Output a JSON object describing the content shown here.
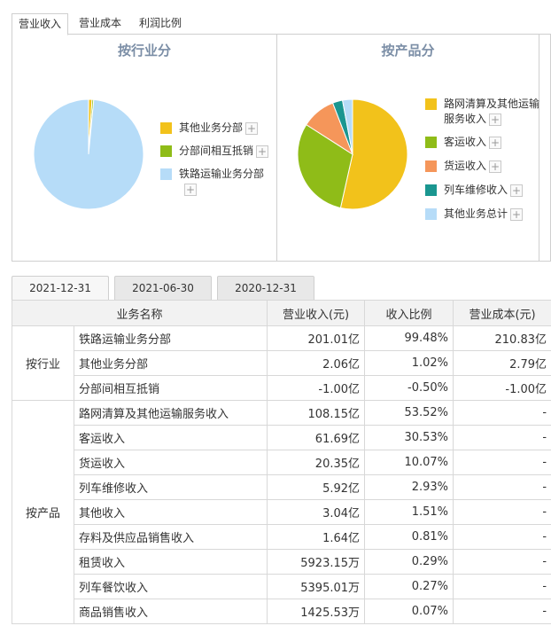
{
  "tabs": [
    "营业收入",
    "营业成本",
    "利润比例"
  ],
  "charts": {
    "industry": {
      "title": "按行业分",
      "legend": [
        {
          "label": "其他业务分部",
          "color": "#f2c21b"
        },
        {
          "label": "分部间相互抵销",
          "color": "#8fbc18"
        },
        {
          "label": "铁路运输业务分部",
          "color": "#b6dcf8"
        }
      ]
    },
    "product": {
      "title": "按产品分",
      "legend": [
        {
          "label": "路网清算及其他运输",
          "label2": "服务收入",
          "color": "#f2c21b"
        },
        {
          "label": "客运收入",
          "color": "#8fbc18"
        },
        {
          "label": "货运收入",
          "color": "#f5965a"
        },
        {
          "label": "列车维修收入",
          "color": "#1a9690"
        },
        {
          "label": "其他业务总计",
          "color": "#b6dcf8"
        }
      ]
    }
  },
  "chart_data": [
    {
      "type": "pie",
      "title": "按行业分",
      "labels": [
        "其他业务分部",
        "分部间相互抵销",
        "铁路运输业务分部"
      ],
      "values": [
        1.02,
        0.5,
        99.48
      ]
    },
    {
      "type": "pie",
      "title": "按产品分",
      "labels": [
        "路网清算及其他运输服务收入",
        "客运收入",
        "货运收入",
        "列车维修收入",
        "其他业务总计"
      ],
      "values": [
        53.52,
        30.53,
        10.07,
        2.93,
        2.95
      ]
    }
  ],
  "date_tabs": [
    "2021-12-31",
    "2021-06-30",
    "2020-12-31"
  ],
  "table": {
    "headers": [
      "业务名称",
      "营业收入(元)",
      "收入比例",
      "营业成本(元)"
    ],
    "groups": [
      {
        "name": "按行业",
        "rows": [
          {
            "name": "铁路运输业务分部",
            "revenue": "201.01亿",
            "ratio": "99.48%",
            "cost": "210.83亿"
          },
          {
            "name": "其他业务分部",
            "revenue": "2.06亿",
            "ratio": "1.02%",
            "cost": "2.79亿"
          },
          {
            "name": "分部间相互抵销",
            "revenue": "-1.00亿",
            "ratio": "-0.50%",
            "cost": "-1.00亿"
          }
        ]
      },
      {
        "name": "按产品",
        "rows": [
          {
            "name": "路网清算及其他运输服务收入",
            "revenue": "108.15亿",
            "ratio": "53.52%",
            "cost": "-"
          },
          {
            "name": "客运收入",
            "revenue": "61.69亿",
            "ratio": "30.53%",
            "cost": "-"
          },
          {
            "name": "货运收入",
            "revenue": "20.35亿",
            "ratio": "10.07%",
            "cost": "-"
          },
          {
            "name": "列车维修收入",
            "revenue": "5.92亿",
            "ratio": "2.93%",
            "cost": "-"
          },
          {
            "name": "其他收入",
            "revenue": "3.04亿",
            "ratio": "1.51%",
            "cost": "-"
          },
          {
            "name": "存料及供应品销售收入",
            "revenue": "1.64亿",
            "ratio": "0.81%",
            "cost": "-"
          },
          {
            "name": "租赁收入",
            "revenue": "5923.15万",
            "ratio": "0.29%",
            "cost": "-"
          },
          {
            "name": "列车餐饮收入",
            "revenue": "5395.01万",
            "ratio": "0.27%",
            "cost": "-"
          },
          {
            "name": "商品销售收入",
            "revenue": "1425.53万",
            "ratio": "0.07%",
            "cost": "-"
          }
        ]
      }
    ]
  }
}
